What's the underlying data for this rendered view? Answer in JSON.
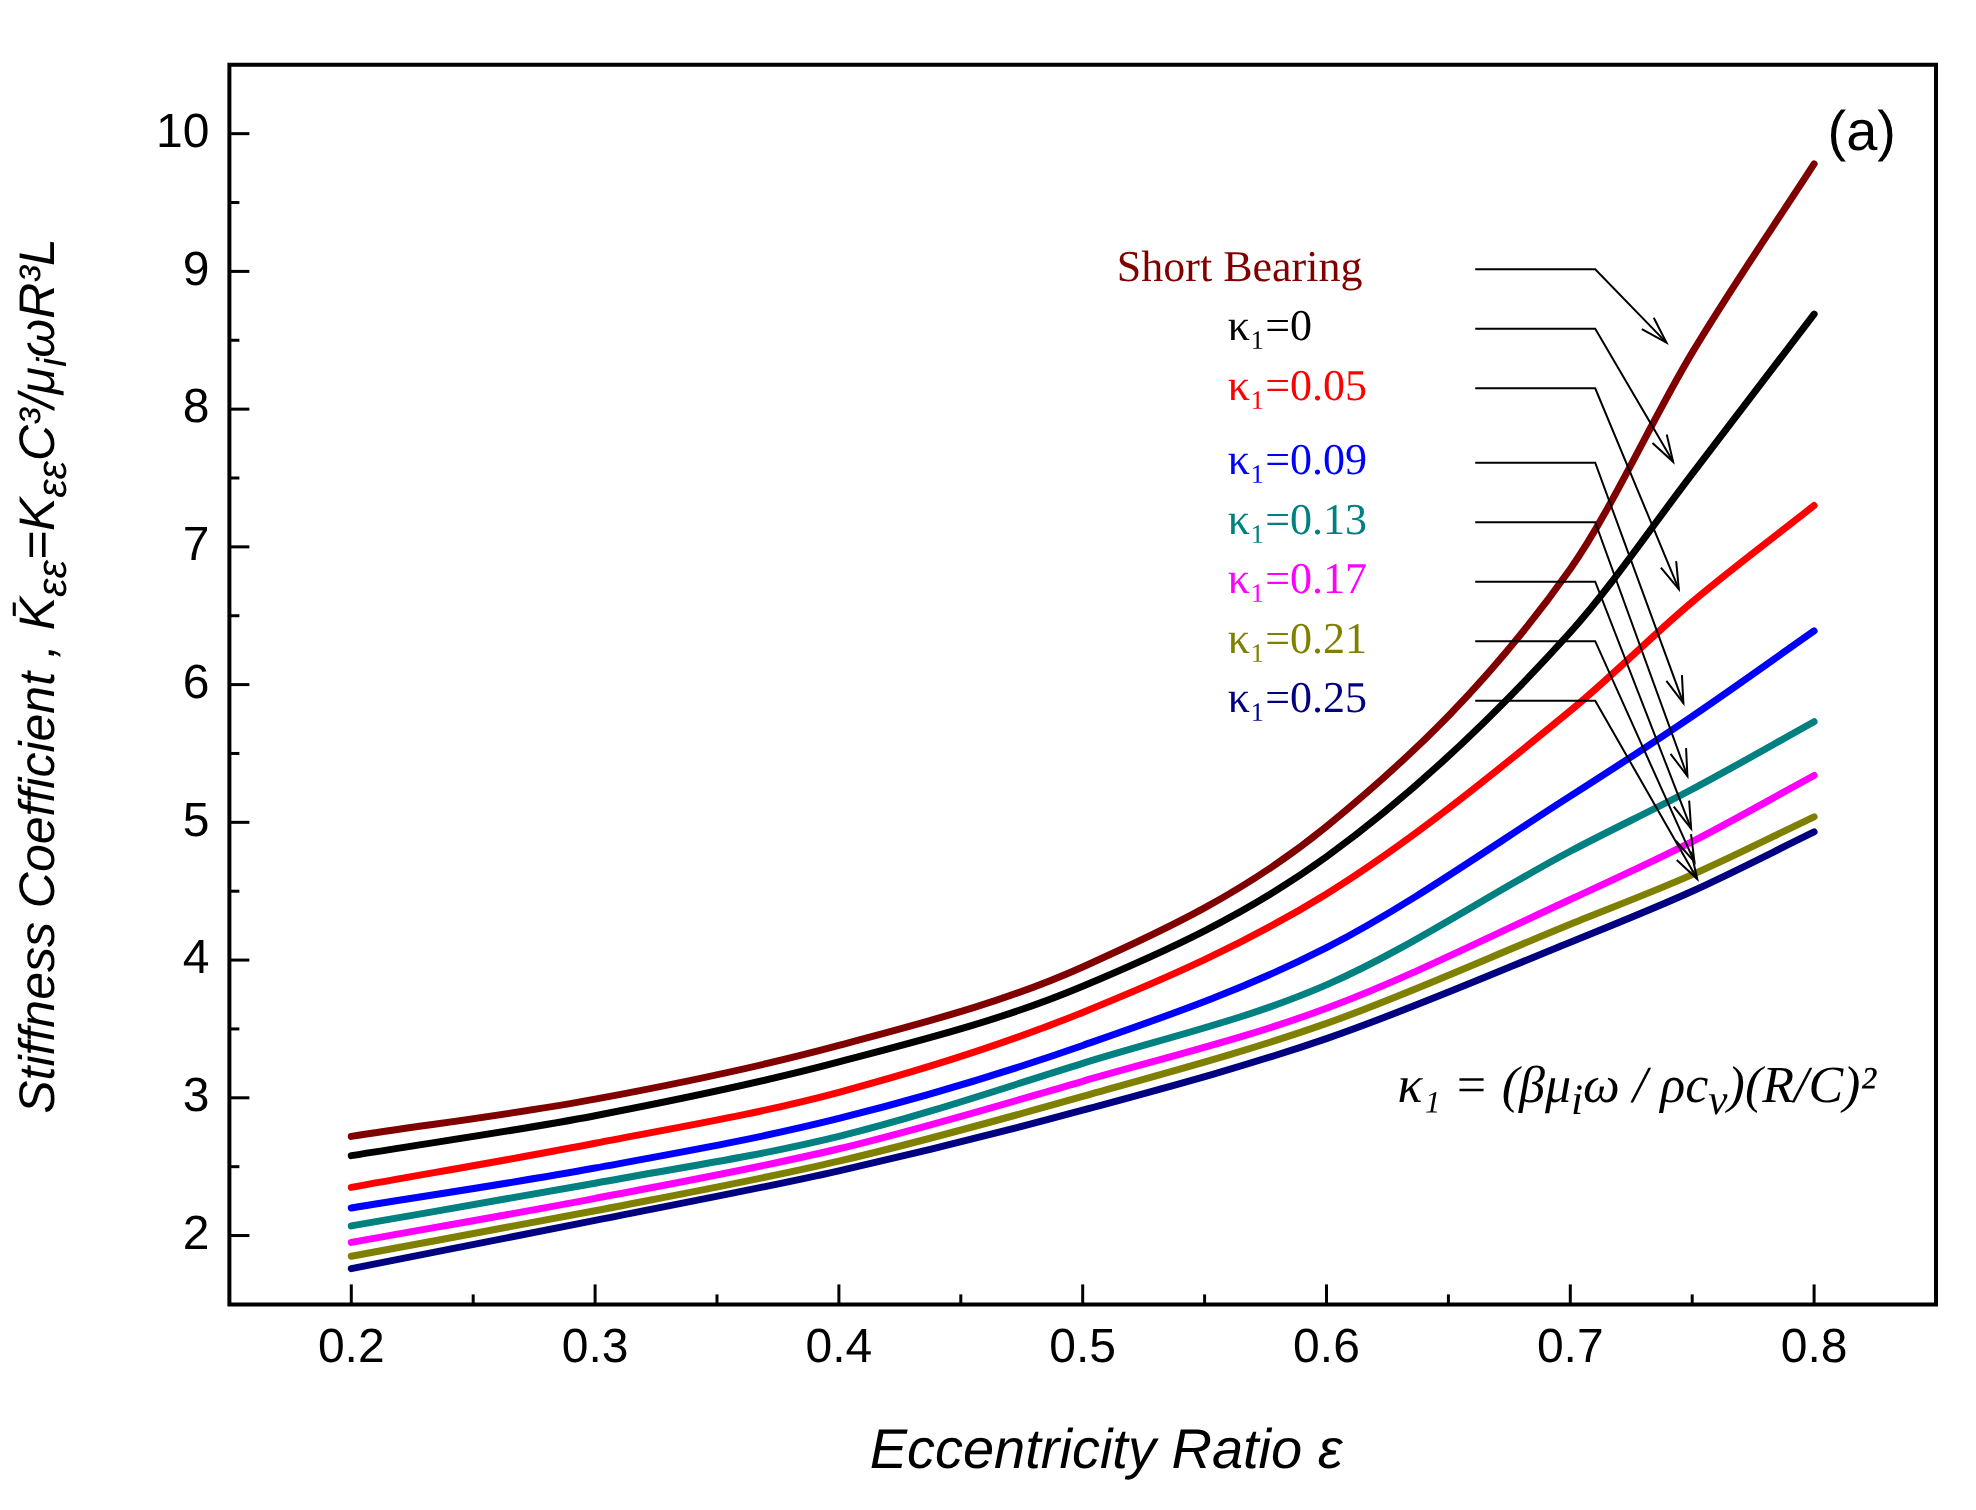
{
  "chart_data": {
    "type": "line",
    "xlabel": "Eccentricity Ratio ε",
    "ylabel": "Stiffness Coefficient , K̄$_{εε}$=K$_{εε}$C³/μ$_{i}$ωR³L",
    "x": [
      0.2,
      0.3,
      0.4,
      0.5,
      0.6,
      0.7,
      0.75,
      0.8
    ],
    "series": [
      {
        "name": "Short Bearing",
        "color": "#800000",
        "values": [
          2.72,
          2.99,
          3.38,
          3.95,
          4.97,
          6.84,
          8.41,
          9.78
        ]
      },
      {
        "name": "κ₁=0",
        "color": "#000000",
        "values": [
          2.58,
          2.87,
          3.26,
          3.81,
          4.75,
          6.38,
          7.53,
          8.69
        ]
      },
      {
        "name": "κ₁=0.05",
        "color": "#ff0000",
        "values": [
          2.35,
          2.67,
          3.04,
          3.62,
          4.48,
          5.81,
          6.6,
          7.3
        ]
      },
      {
        "name": "κ₁=0.09",
        "color": "#0000ff",
        "values": [
          2.2,
          2.49,
          2.85,
          3.38,
          4.09,
          5.19,
          5.77,
          6.39
        ]
      },
      {
        "name": "κ₁=0.13",
        "color": "#008080",
        "values": [
          2.07,
          2.38,
          2.72,
          3.25,
          3.82,
          4.79,
          5.24,
          5.73
        ]
      },
      {
        "name": "κ₁=0.17",
        "color": "#ff00ff",
        "values": [
          1.95,
          2.27,
          2.63,
          3.12,
          3.65,
          4.44,
          4.86,
          5.34
        ]
      },
      {
        "name": "κ₁=0.21",
        "color": "#808000",
        "values": [
          1.85,
          2.18,
          2.54,
          3.01,
          3.54,
          4.26,
          4.62,
          5.04
        ]
      },
      {
        "name": "κ₁=0.25",
        "color": "#000080",
        "values": [
          1.76,
          2.11,
          2.47,
          2.91,
          3.43,
          4.13,
          4.5,
          4.93
        ]
      }
    ],
    "xlim": [
      0.15,
      0.85
    ],
    "xticks": [
      0.2,
      {
        "value": 0.25,
        "label": null
      },
      0.3,
      {
        "value": 0.35,
        "label": null
      },
      0.4,
      {
        "value": 0.45,
        "label": null
      },
      0.5,
      {
        "value": 0.55,
        "label": null
      },
      0.6,
      {
        "value": 0.65,
        "label": null
      },
      0.7,
      {
        "value": 0.75,
        "label": null
      },
      0.8
    ],
    "ylim": [
      1.5,
      10.5
    ],
    "yticks": [
      2,
      {
        "value": 2.5,
        "label": null
      },
      3,
      {
        "value": 3.5,
        "label": null
      },
      4,
      {
        "value": 4.5,
        "label": null
      },
      5,
      {
        "value": 5.5,
        "label": null
      },
      6,
      {
        "value": 6.5,
        "label": null
      },
      7,
      {
        "value": 7.5,
        "label": null
      },
      8,
      {
        "value": 8.5,
        "label": null
      },
      9,
      {
        "value": 9.5,
        "label": null
      },
      10
    ],
    "grid": false,
    "legend": false,
    "marker": "none",
    "line_style": "solid",
    "annotations": [
      "(a)",
      "κ₁ = (βμ$_{i}$ω / ρc$_{v}$)(R/C)²"
    ]
  }
}
